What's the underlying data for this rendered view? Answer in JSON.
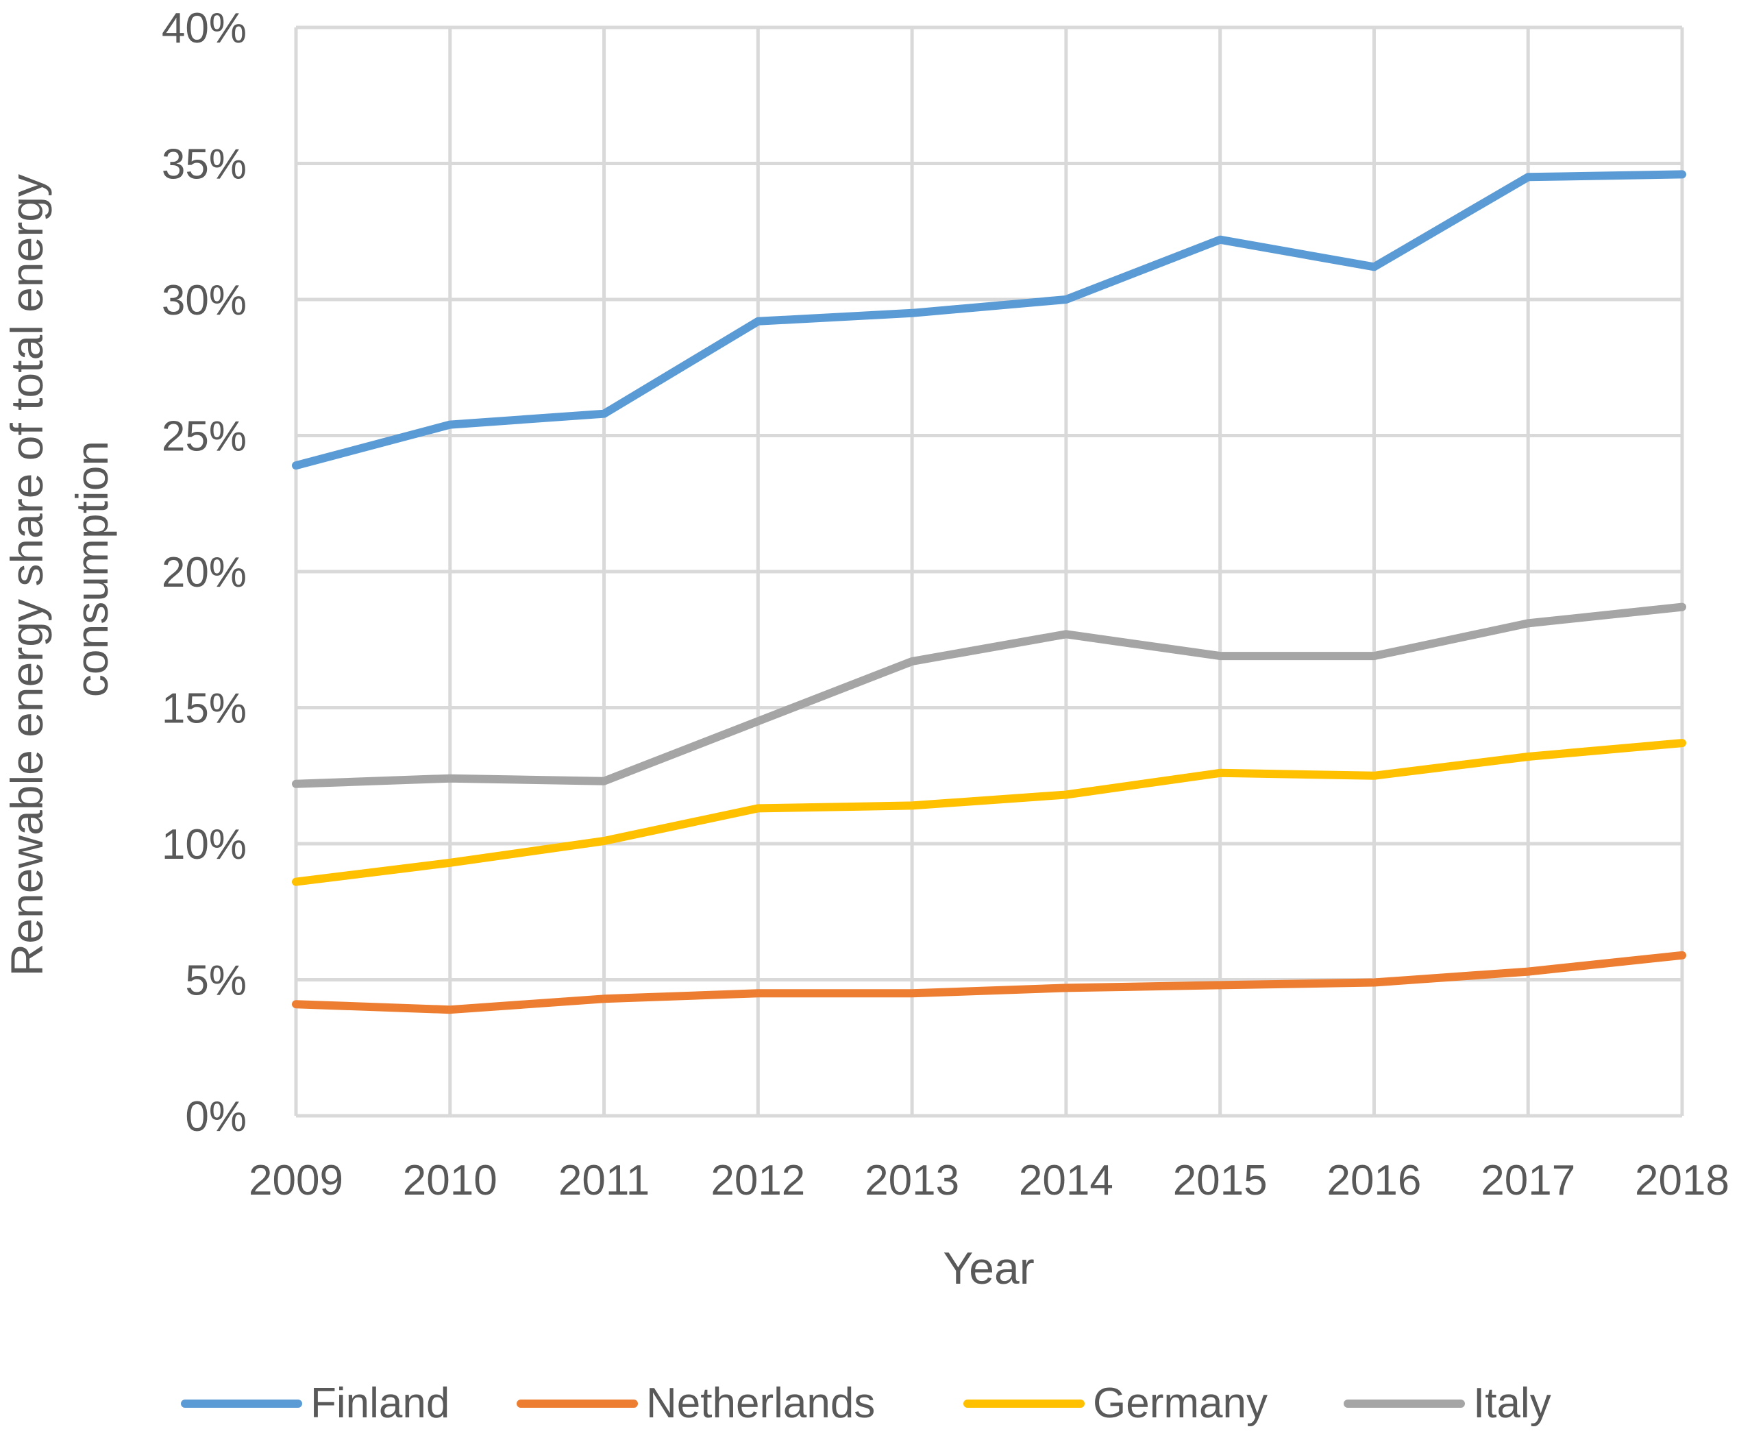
{
  "chart_data": {
    "type": "line",
    "title": "",
    "xlabel": "Year",
    "ylabel_lines": [
      "Renewable energy share of total energy",
      "consumption"
    ],
    "categories": [
      "2009",
      "2010",
      "2011",
      "2012",
      "2013",
      "2014",
      "2015",
      "2016",
      "2017",
      "2018"
    ],
    "y_ticks": [
      "0%",
      "5%",
      "10%",
      "15%",
      "20%",
      "25%",
      "30%",
      "35%",
      "40%"
    ],
    "ylim": [
      0,
      40
    ],
    "y_unit": "%",
    "grid": true,
    "legend_position": "bottom",
    "series": [
      {
        "name": "Finland",
        "color": "#5B9BD5",
        "values": [
          23.9,
          25.4,
          25.8,
          29.2,
          29.5,
          30.0,
          32.2,
          31.2,
          34.5,
          34.6
        ]
      },
      {
        "name": "Netherlands",
        "color": "#ED7D31",
        "values": [
          4.1,
          3.9,
          4.3,
          4.5,
          4.5,
          4.7,
          4.8,
          4.9,
          5.3,
          5.9
        ]
      },
      {
        "name": "Germany",
        "color": "#FFC000",
        "values": [
          8.6,
          9.3,
          10.1,
          11.3,
          11.4,
          11.8,
          12.6,
          12.5,
          13.2,
          13.7
        ]
      },
      {
        "name": "Italy",
        "color": "#A5A5A5",
        "values": [
          12.2,
          12.4,
          12.3,
          14.5,
          16.7,
          17.7,
          16.9,
          16.9,
          18.1,
          18.7
        ]
      }
    ]
  },
  "colors": {
    "grid": "#D9D9D9",
    "text": "#595959"
  }
}
